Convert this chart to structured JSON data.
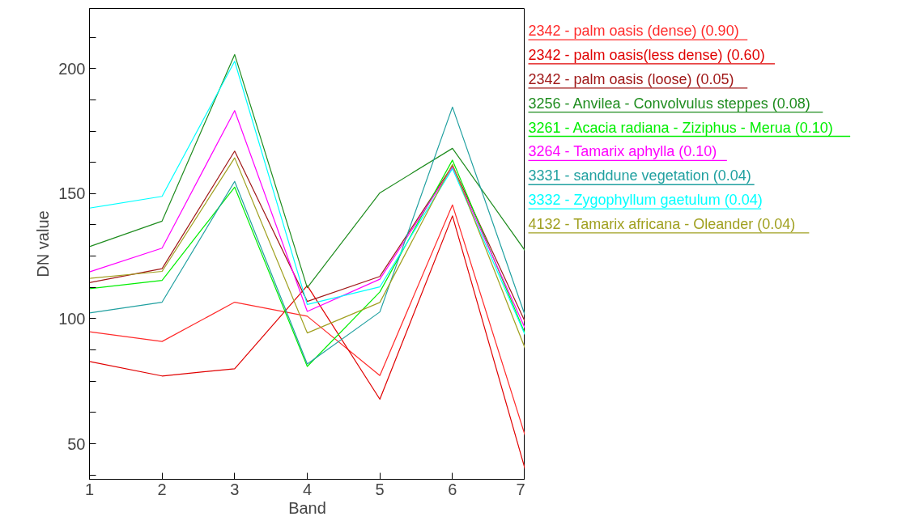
{
  "chart_data": {
    "type": "line",
    "xlabel": "Band",
    "ylabel": "DN value",
    "x": [
      1,
      2,
      3,
      4,
      5,
      6,
      7
    ],
    "xlim": [
      1,
      7
    ],
    "xticks": [
      1,
      2,
      3,
      4,
      5,
      6,
      7
    ],
    "ylim": [
      35.8,
      224
    ],
    "yticks": [
      {
        "value": 37.5,
        "label": null
      },
      50,
      {
        "value": 62.5,
        "label": null
      },
      {
        "value": 75,
        "label": null
      },
      {
        "value": 87.5,
        "label": null
      },
      100,
      {
        "value": 112.5,
        "label": null
      },
      {
        "value": 125,
        "label": null
      },
      {
        "value": 137.5,
        "label": null
      },
      150,
      {
        "value": 162.5,
        "label": null
      },
      {
        "value": 175,
        "label": null
      },
      {
        "value": 187.5,
        "label": null
      },
      200,
      {
        "value": 212.5,
        "label": null
      }
    ],
    "grid": false,
    "legend": "right",
    "marker": "none",
    "line_style": "solid",
    "series": [
      {
        "name": "2342 - palm oasis (dense) (0.90)",
        "color": "#ff2a2a",
        "values": [
          94.8,
          90.9,
          106.6,
          101,
          77.3,
          145.5,
          53.3
        ]
      },
      {
        "name": "2342 - palm oasis(less dense) (0.60)",
        "color": "#e00000",
        "values": [
          82.9,
          77.1,
          80,
          113.2,
          67.8,
          141.1,
          39.9
        ]
      },
      {
        "name": "2342 - palm oasis (loose) (0.05)",
        "color": "#a01818",
        "values": [
          114.4,
          120,
          167,
          106.9,
          116.9,
          161.2,
          98.8
        ]
      },
      {
        "name": "3256 - Anvilea - Convolvulus steppes (0.08)",
        "color": "#1e8c1e",
        "values": [
          128.8,
          139,
          205.6,
          112.4,
          150.3,
          168.1,
          127.2
        ]
      },
      {
        "name": "3261 - Acacia radiana - Ziziphus - Merua (0.10)",
        "color": "#00ee00",
        "values": [
          112,
          115.3,
          152.6,
          80.9,
          110.7,
          163.4,
          94
        ]
      },
      {
        "name": "3264 - Tamarix aphylla (0.10)",
        "color": "#ff00ff",
        "values": [
          118.7,
          128.2,
          183.2,
          102.9,
          115.8,
          160.6,
          96.2
        ]
      },
      {
        "name": "3331 - sanddune vegetation (0.04)",
        "color": "#20a0a0",
        "values": [
          102.3,
          106.6,
          154.9,
          81.9,
          102.7,
          184.6,
          101.3
        ]
      },
      {
        "name": "3332 - Zygophyllum gaetulum (0.04)",
        "color": "#00ffff",
        "values": [
          144.2,
          148.9,
          202.9,
          105.7,
          112.7,
          160,
          93.5
        ]
      },
      {
        "name": "4132 - Tamarix africana - Oleander (0.04)",
        "color": "#a0a020",
        "values": [
          116.1,
          118.9,
          164.3,
          94.3,
          106.5,
          161.7,
          88.2
        ]
      }
    ]
  }
}
